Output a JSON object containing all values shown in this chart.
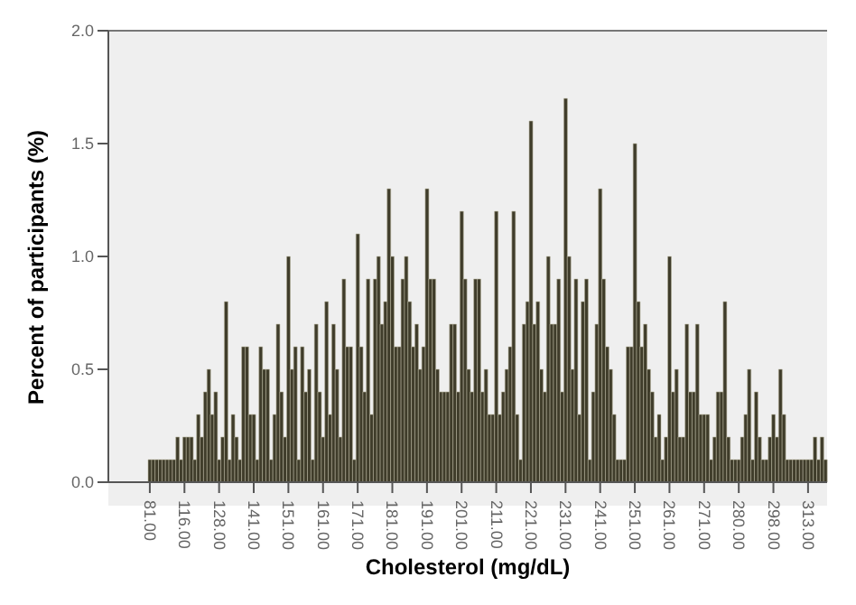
{
  "chart_data": {
    "type": "bar",
    "xlabel": "Cholesterol (mg/dL)",
    "ylabel": "Percent of participants (%)",
    "categories": [
      "81.00",
      null,
      null,
      null,
      null,
      null,
      null,
      null,
      null,
      null,
      "116.00",
      null,
      null,
      null,
      null,
      null,
      null,
      null,
      null,
      null,
      "128.00",
      null,
      null,
      null,
      null,
      null,
      null,
      null,
      null,
      null,
      "141.00",
      null,
      null,
      null,
      null,
      null,
      null,
      null,
      null,
      null,
      "151.00",
      null,
      null,
      null,
      null,
      null,
      null,
      null,
      null,
      null,
      "161.00",
      null,
      null,
      null,
      null,
      null,
      null,
      null,
      null,
      null,
      "171.00",
      null,
      null,
      null,
      null,
      null,
      null,
      null,
      null,
      null,
      "181.00",
      null,
      null,
      null,
      null,
      null,
      null,
      null,
      null,
      null,
      "191.00",
      null,
      null,
      null,
      null,
      null,
      null,
      null,
      null,
      null,
      "201.00",
      null,
      null,
      null,
      null,
      null,
      null,
      null,
      null,
      null,
      "211.00",
      null,
      null,
      null,
      null,
      null,
      null,
      null,
      null,
      null,
      "221.00",
      null,
      null,
      null,
      null,
      null,
      null,
      null,
      null,
      null,
      "231.00",
      null,
      null,
      null,
      null,
      null,
      null,
      null,
      null,
      null,
      "241.00",
      null,
      null,
      null,
      null,
      null,
      null,
      null,
      null,
      null,
      "251.00",
      null,
      null,
      null,
      null,
      null,
      null,
      null,
      null,
      null,
      "261.00",
      null,
      null,
      null,
      null,
      null,
      null,
      null,
      null,
      null,
      "271.00",
      null,
      null,
      null,
      null,
      null,
      null,
      null,
      null,
      null,
      "280.00",
      null,
      null,
      null,
      null,
      null,
      null,
      null,
      null,
      null,
      "298.00",
      null,
      null,
      null,
      null,
      null,
      null,
      null,
      null,
      null,
      "313.00",
      null,
      null,
      null,
      null,
      null
    ],
    "values": [
      0.1,
      0.1,
      0.1,
      0.1,
      0.1,
      0.1,
      0.1,
      0.1,
      0.2,
      0.1,
      0.2,
      0.2,
      0.2,
      0.1,
      0.3,
      0.2,
      0.4,
      0.5,
      0.3,
      0.4,
      0.1,
      0.2,
      0.8,
      0.1,
      0.3,
      0.2,
      0.1,
      0.6,
      0.6,
      0.3,
      0.3,
      0.1,
      0.6,
      0.5,
      0.5,
      0.1,
      0.3,
      0.7,
      0.4,
      0.2,
      1.0,
      0.5,
      0.6,
      0.1,
      0.6,
      0.4,
      0.5,
      0.1,
      0.7,
      0.4,
      0.2,
      0.8,
      0.3,
      0.7,
      0.5,
      0.2,
      0.9,
      0.6,
      0.6,
      0.1,
      1.1,
      0.6,
      0.4,
      0.9,
      0.3,
      0.9,
      1.0,
      0.7,
      0.8,
      1.3,
      1.0,
      0.6,
      0.6,
      0.9,
      1.0,
      0.8,
      0.6,
      0.7,
      0.5,
      0.6,
      1.3,
      0.9,
      0.9,
      0.5,
      0.4,
      0.4,
      0.4,
      0.7,
      0.7,
      0.4,
      1.2,
      0.9,
      0.5,
      0.4,
      0.9,
      0.9,
      0.4,
      0.5,
      0.3,
      0.3,
      1.2,
      0.3,
      0.4,
      0.5,
      0.6,
      1.2,
      0.3,
      0.1,
      0.7,
      0.8,
      1.6,
      0.7,
      0.8,
      0.5,
      0.4,
      1.0,
      0.7,
      0.7,
      0.9,
      0.4,
      1.7,
      1.0,
      0.5,
      0.9,
      0.3,
      0.8,
      0.9,
      0.1,
      0.4,
      0.7,
      1.3,
      0.9,
      0.6,
      0.5,
      0.3,
      0.1,
      0.1,
      0.1,
      0.6,
      0.6,
      1.5,
      0.8,
      0.6,
      0.7,
      0.5,
      0.4,
      0.2,
      0.3,
      0.1,
      0.2,
      1.0,
      0.4,
      0.5,
      0.2,
      0.2,
      0.7,
      0.4,
      0.4,
      0.7,
      0.3,
      0.3,
      0.3,
      0.1,
      0.2,
      0.4,
      0.4,
      0.8,
      0.2,
      0.1,
      0.1,
      0.1,
      0.2,
      0.3,
      0.5,
      0.1,
      0.4,
      0.2,
      0.1,
      0.1,
      0.2,
      0.3,
      0.2,
      0.5,
      0.3,
      0.1,
      0.1,
      0.1,
      0.1,
      0.1,
      0.1,
      0.1,
      0.1,
      0.2,
      0.1,
      0.2,
      0.1
    ],
    "color": "#3f3c2a",
    "ylim": [
      0,
      2.0
    ],
    "yticks": [
      {
        "value": 0,
        "label": "0.0"
      },
      {
        "value": 0.5,
        "label": "0.5"
      },
      {
        "value": 1,
        "label": "1.0"
      },
      {
        "value": 1.5,
        "label": "1.5"
      },
      {
        "value": 2,
        "label": "2.0"
      }
    ],
    "grid": false,
    "legend": false
  }
}
